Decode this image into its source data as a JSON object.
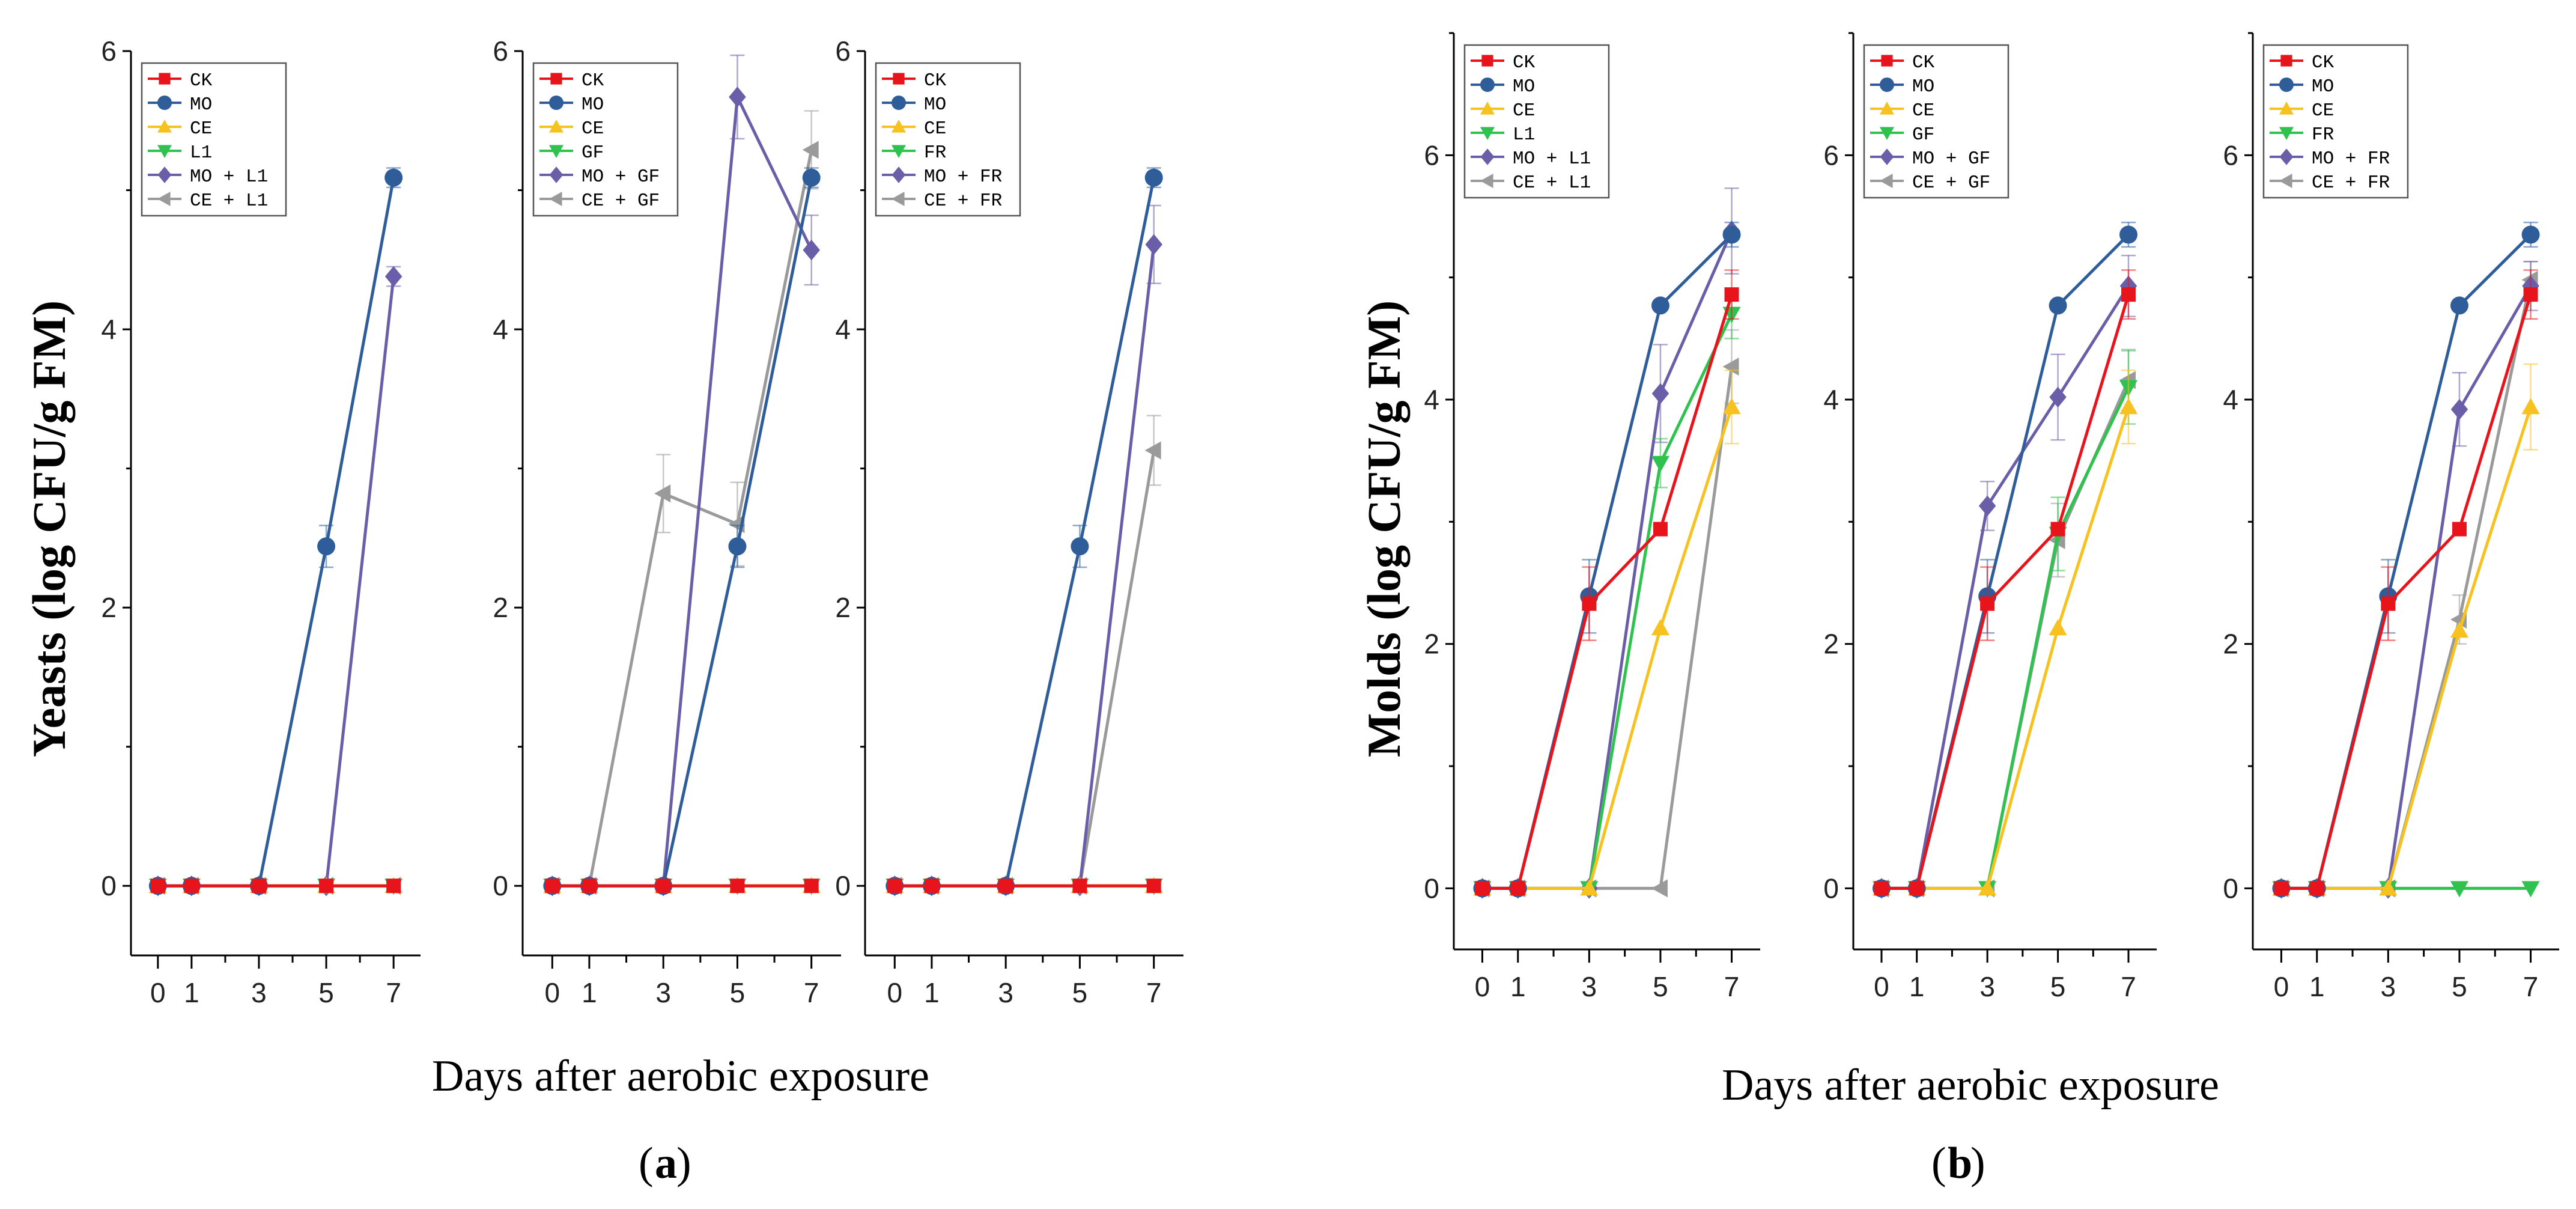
{
  "figure": {
    "x_axis_label": "Days after aerobic exposure",
    "panel_a_label": "a",
    "panel_b_label": "b",
    "yeasts_ylabel": "Yeasts (log CFU/g FM)",
    "molds_ylabel": "Molds (log CFU/g FM)"
  },
  "series_colors": {
    "CK": "#e8141c",
    "MO": "#2e5d9a",
    "CE": "#f7c11f",
    "ADD": "#2fc24f",
    "MO_ADD": "#6b5ea8",
    "CE_ADD": "#9a9a9a"
  },
  "chart_data": [
    {
      "type": "line",
      "group": "a",
      "x": [
        0,
        1,
        3,
        5,
        7
      ],
      "ylim": [
        -0.5,
        6
      ],
      "yticks": [
        0,
        2,
        4,
        6
      ],
      "series": [
        {
          "name": "CK",
          "values": [
            0,
            0,
            0,
            0,
            0
          ],
          "error": [
            0,
            0,
            0,
            0,
            0
          ]
        },
        {
          "name": "MO",
          "values": [
            0,
            0,
            0,
            2.44,
            5.09
          ],
          "error": [
            0,
            0,
            0,
            0.15,
            0.07
          ]
        },
        {
          "name": "CE",
          "values": [
            0,
            0,
            0,
            0,
            0
          ],
          "error": [
            0,
            0,
            0,
            0,
            0
          ]
        },
        {
          "name": "L1",
          "values": [
            0,
            0,
            0,
            0,
            0
          ],
          "error": [
            0,
            0,
            0,
            0,
            0
          ]
        },
        {
          "name": "MO + L1",
          "values": [
            0,
            0,
            0,
            0,
            4.38
          ],
          "error": [
            0,
            0,
            0,
            0,
            0.07
          ]
        },
        {
          "name": "CE + L1",
          "values": [
            0,
            0,
            0,
            0,
            0
          ],
          "error": [
            0,
            0,
            0,
            0,
            0
          ]
        }
      ]
    },
    {
      "type": "line",
      "group": "a",
      "x": [
        0,
        1,
        3,
        5,
        7
      ],
      "ylim": [
        -0.5,
        6
      ],
      "yticks": [
        0,
        2,
        4,
        6
      ],
      "series": [
        {
          "name": "CK",
          "values": [
            0,
            0,
            0,
            0,
            0
          ],
          "error": [
            0,
            0,
            0,
            0,
            0
          ]
        },
        {
          "name": "MO",
          "values": [
            0,
            0,
            0,
            2.44,
            5.09
          ],
          "error": [
            0,
            0,
            0,
            0.15,
            0.07
          ]
        },
        {
          "name": "CE",
          "values": [
            0,
            0,
            0,
            0,
            0
          ],
          "error": [
            0,
            0,
            0,
            0,
            0
          ]
        },
        {
          "name": "GF",
          "values": [
            0,
            0,
            0,
            0,
            0
          ],
          "error": [
            0,
            0,
            0,
            0,
            0
          ]
        },
        {
          "name": "MO + GF",
          "values": [
            0,
            0,
            0,
            5.67,
            4.57
          ],
          "error": [
            0,
            0,
            0,
            0.3,
            0.25
          ]
        },
        {
          "name": "CE + GF",
          "values": [
            0,
            0,
            2.82,
            2.6,
            5.29
          ],
          "error": [
            0,
            0,
            0.28,
            0.3,
            0.28
          ]
        }
      ]
    },
    {
      "type": "line",
      "group": "a",
      "x": [
        0,
        1,
        3,
        5,
        7
      ],
      "ylim": [
        -0.5,
        6
      ],
      "yticks": [
        0,
        2,
        4,
        6
      ],
      "series": [
        {
          "name": "CK",
          "values": [
            0,
            0,
            0,
            0,
            0
          ],
          "error": [
            0,
            0,
            0,
            0,
            0
          ]
        },
        {
          "name": "MO",
          "values": [
            0,
            0,
            0,
            2.44,
            5.09
          ],
          "error": [
            0,
            0,
            0,
            0.15,
            0.07
          ]
        },
        {
          "name": "CE",
          "values": [
            0,
            0,
            0,
            0,
            0
          ],
          "error": [
            0,
            0,
            0,
            0,
            0
          ]
        },
        {
          "name": "FR",
          "values": [
            0,
            0,
            0,
            0,
            0
          ],
          "error": [
            0,
            0,
            0,
            0,
            0
          ]
        },
        {
          "name": "MO + FR",
          "values": [
            0,
            0,
            0,
            0,
            4.61
          ],
          "error": [
            0,
            0,
            0,
            0,
            0.28
          ]
        },
        {
          "name": "CE + FR",
          "values": [
            0,
            0,
            0,
            0,
            3.13
          ],
          "error": [
            0,
            0,
            0,
            0,
            0.25
          ]
        }
      ]
    },
    {
      "type": "line",
      "group": "b",
      "x": [
        0,
        1,
        3,
        5,
        7
      ],
      "ylim": [
        -0.5,
        7
      ],
      "yticks": [
        0,
        2,
        4,
        6
      ],
      "series": [
        {
          "name": "CK",
          "values": [
            0,
            0,
            2.33,
            2.94,
            4.86
          ],
          "error": [
            0,
            0,
            0.3,
            0,
            0.2
          ]
        },
        {
          "name": "MO",
          "values": [
            0,
            0,
            2.39,
            4.77,
            5.35
          ],
          "error": [
            0,
            0,
            0.3,
            0,
            0.1
          ]
        },
        {
          "name": "CE",
          "values": [
            0,
            0,
            0,
            2.13,
            3.94
          ],
          "error": [
            0,
            0,
            0,
            0,
            0.3
          ]
        },
        {
          "name": "L1",
          "values": [
            0,
            0,
            0,
            3.48,
            4.7
          ],
          "error": [
            0,
            0,
            0,
            0.2,
            0.2
          ]
        },
        {
          "name": "MO + L1",
          "values": [
            0,
            0,
            0,
            4.05,
            5.38
          ],
          "error": [
            0,
            0,
            0,
            0.4,
            0.35
          ]
        },
        {
          "name": "CE + L1",
          "values": [
            0,
            0,
            0,
            0,
            4.27
          ],
          "error": [
            0,
            0,
            0,
            0,
            0.3
          ]
        }
      ]
    },
    {
      "type": "line",
      "group": "b",
      "x": [
        0,
        1,
        3,
        5,
        7
      ],
      "ylim": [
        -0.5,
        7
      ],
      "yticks": [
        0,
        2,
        4,
        6
      ],
      "series": [
        {
          "name": "CK",
          "values": [
            0,
            0,
            2.33,
            2.94,
            4.86
          ],
          "error": [
            0,
            0,
            0.3,
            0,
            0.2
          ]
        },
        {
          "name": "MO",
          "values": [
            0,
            0,
            2.39,
            4.77,
            5.35
          ],
          "error": [
            0,
            0,
            0.3,
            0,
            0.1
          ]
        },
        {
          "name": "CE",
          "values": [
            0,
            0,
            0,
            2.13,
            3.94
          ],
          "error": [
            0,
            0,
            0,
            0,
            0.3
          ]
        },
        {
          "name": "GF",
          "values": [
            0,
            0,
            0,
            2.9,
            4.1
          ],
          "error": [
            0,
            0,
            0,
            0.3,
            0.3
          ]
        },
        {
          "name": "MO + GF",
          "values": [
            0,
            0,
            3.13,
            4.02,
            4.93
          ],
          "error": [
            0,
            0,
            0.2,
            0.35,
            0.25
          ]
        },
        {
          "name": "CE + GF",
          "values": [
            0,
            0,
            0,
            2.85,
            4.16
          ],
          "error": [
            0,
            0,
            0,
            0.3,
            0.25
          ]
        }
      ]
    },
    {
      "type": "line",
      "group": "b",
      "x": [
        0,
        1,
        3,
        5,
        7
      ],
      "ylim": [
        -0.5,
        7
      ],
      "yticks": [
        0,
        2,
        4,
        6
      ],
      "series": [
        {
          "name": "CK",
          "values": [
            0,
            0,
            2.33,
            2.94,
            4.86
          ],
          "error": [
            0,
            0,
            0.3,
            0,
            0.2
          ]
        },
        {
          "name": "MO",
          "values": [
            0,
            0,
            2.39,
            4.77,
            5.35
          ],
          "error": [
            0,
            0,
            0.3,
            0,
            0.1
          ]
        },
        {
          "name": "CE",
          "values": [
            0,
            0,
            0,
            2.11,
            3.94
          ],
          "error": [
            0,
            0,
            0,
            0,
            0.35
          ]
        },
        {
          "name": "FR",
          "values": [
            0,
            0,
            0,
            0,
            0
          ],
          "error": [
            0,
            0,
            0,
            0,
            0
          ]
        },
        {
          "name": "MO + FR",
          "values": [
            0,
            0,
            0,
            3.92,
            4.93
          ],
          "error": [
            0,
            0,
            0,
            0.3,
            0.2
          ]
        },
        {
          "name": "CE + FR",
          "values": [
            0,
            0,
            0,
            2.2,
            4.98
          ],
          "error": [
            0,
            0,
            0,
            0.2,
            0.15
          ]
        }
      ]
    }
  ]
}
